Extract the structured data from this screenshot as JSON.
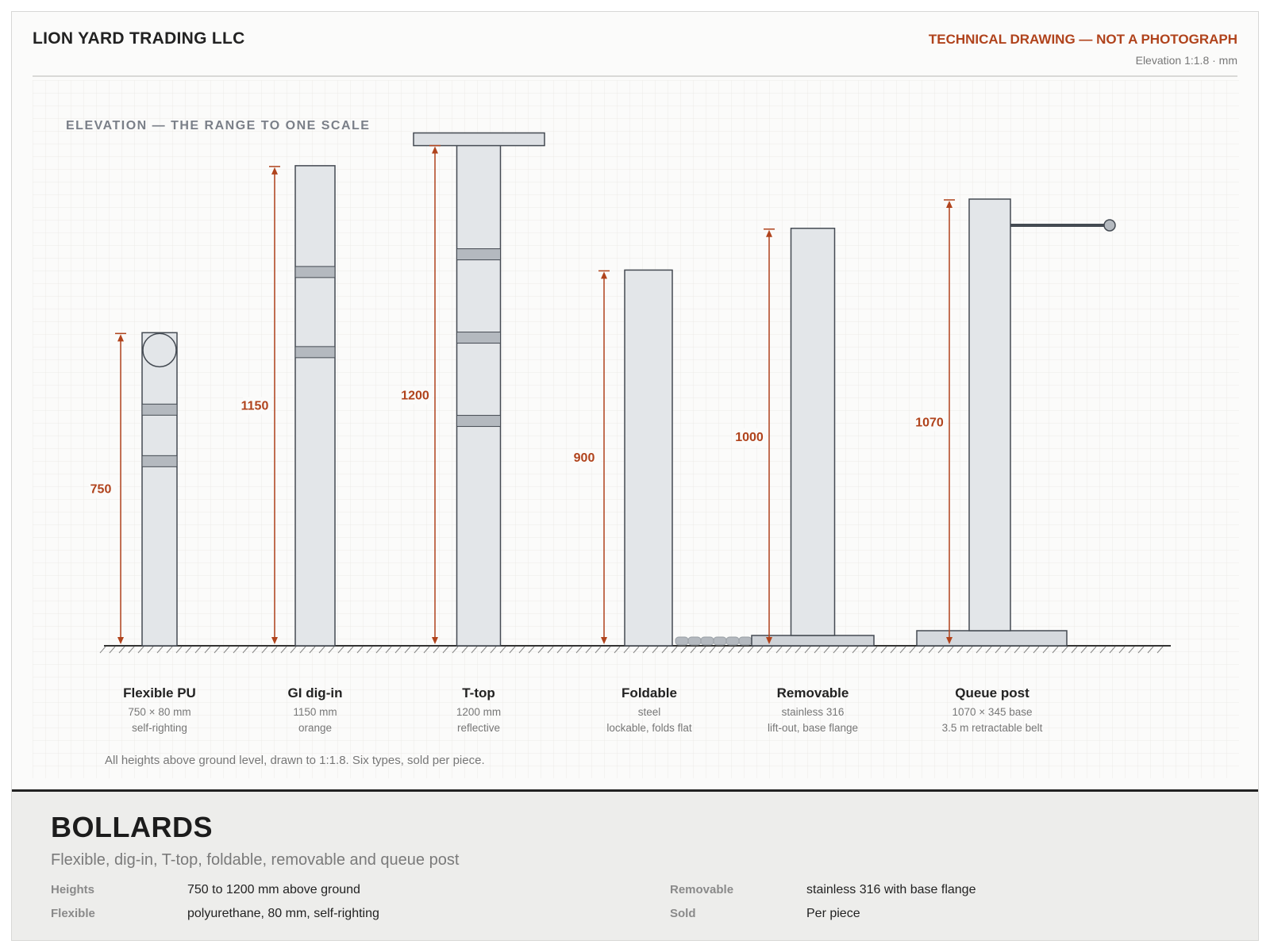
{
  "header": {
    "company": "LION YARD TRADING LLC",
    "notice": "TECHNICAL DRAWING — NOT A PHOTOGRAPH",
    "scale": "Elevation 1:1.8 · mm"
  },
  "drawing": {
    "title": "ELEVATION — THE RANGE TO ONE SCALE",
    "note": "All heights above ground level, drawn to 1:1.8. Six types, sold per piece.",
    "dim_color": "#b0431c",
    "bollards": [
      {
        "name": "Flexible PU",
        "height_mm": 750,
        "height_label": "750",
        "line1": "750 × 80 mm",
        "line2": "self-righting"
      },
      {
        "name": "GI dig-in",
        "height_mm": 1150,
        "height_label": "1150",
        "line1": "1150 mm",
        "line2": "orange"
      },
      {
        "name": "T-top",
        "height_mm": 1200,
        "height_label": "1200",
        "line1": "1200 mm",
        "line2": "reflective"
      },
      {
        "name": "Foldable",
        "height_mm": 900,
        "height_label": "900",
        "line1": "steel",
        "line2": "lockable, folds flat"
      },
      {
        "name": "Removable",
        "height_mm": 1000,
        "height_label": "1000",
        "line1": "stainless 316",
        "line2": "lift-out, base flange"
      },
      {
        "name": "Queue post",
        "height_mm": 1070,
        "height_label": "1070",
        "line1": "1070 × 345 base",
        "line2": "3.5 m retractable belt"
      }
    ]
  },
  "footer": {
    "title": "BOLLARDS",
    "subtitle": "Flexible, dig-in, T-top, foldable, removable and queue post",
    "specs": [
      {
        "key": "Heights",
        "value": "750 to 1200 mm above ground"
      },
      {
        "key": "Flexible",
        "value": "polyurethane, 80 mm, self-righting"
      },
      {
        "key": "Removable",
        "value": "stainless 316 with base flange"
      },
      {
        "key": "Sold",
        "value": "Per piece"
      }
    ]
  }
}
